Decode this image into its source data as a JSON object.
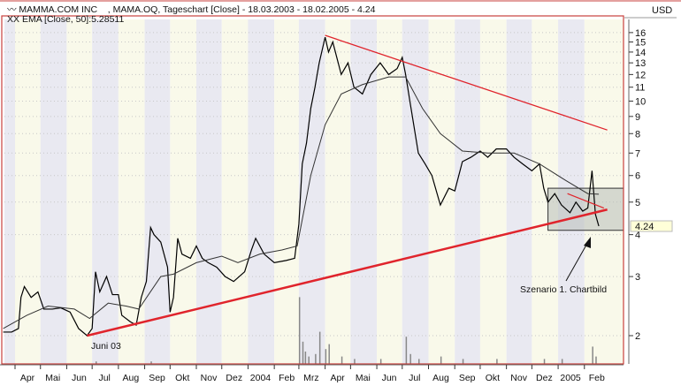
{
  "header": {
    "title_line": "MAMMA.COM INC    , MAMA.OQ, Tageschart [Close] - 18.03.2003 - 18.02.2005 - 4.24",
    "ema_line": "EMA [Close, 50]:5.28511"
  },
  "currency": "USD",
  "annotations": {
    "low_label": "Juni 03",
    "scenario_label": "Szenario 1. Chartbild"
  },
  "colors": {
    "price": "#000000",
    "ema": "#333333",
    "trendline": "#e0242c",
    "stripe_a": "#e9e9f1",
    "stripe_b": "#f9f9ea",
    "box": "#b8bdb8",
    "last_price_bg": "#ffffd8"
  },
  "chart_data": {
    "type": "line",
    "y_scale": "log",
    "ylim": [
      1.9,
      17
    ],
    "y_ticks": [
      2,
      3,
      4,
      5,
      6,
      7,
      8,
      9,
      10,
      11,
      12,
      13,
      14,
      15,
      16
    ],
    "last_price": "4.24",
    "x_ticks": [
      {
        "date": "2003-04-01",
        "label": "Apr"
      },
      {
        "date": "2003-05-01",
        "label": "Mai"
      },
      {
        "date": "2003-06-01",
        "label": "Jun"
      },
      {
        "date": "2003-07-01",
        "label": "Jul"
      },
      {
        "date": "2003-08-01",
        "label": "Aug"
      },
      {
        "date": "2003-09-01",
        "label": "Sep"
      },
      {
        "date": "2003-10-01",
        "label": "Okt"
      },
      {
        "date": "2003-11-01",
        "label": "Nov"
      },
      {
        "date": "2003-12-01",
        "label": "Dez"
      },
      {
        "date": "2004-01-01",
        "label": "2004"
      },
      {
        "date": "2004-02-01",
        "label": "Feb"
      },
      {
        "date": "2004-03-01",
        "label": "Mrz"
      },
      {
        "date": "2004-04-01",
        "label": "Apr"
      },
      {
        "date": "2004-05-01",
        "label": "Mai"
      },
      {
        "date": "2004-06-01",
        "label": "Jun"
      },
      {
        "date": "2004-07-01",
        "label": "Jul"
      },
      {
        "date": "2004-08-01",
        "label": "Aug"
      },
      {
        "date": "2004-09-01",
        "label": "Sep"
      },
      {
        "date": "2004-10-01",
        "label": "Okt"
      },
      {
        "date": "2004-11-01",
        "label": "Nov"
      },
      {
        "date": "2004-12-01",
        "label": "Dez"
      },
      {
        "date": "2005-01-01",
        "label": "2005"
      },
      {
        "date": "2005-02-01",
        "label": "Feb"
      }
    ],
    "series": [
      {
        "key": "price",
        "points": [
          [
            "2003-03-18",
            2.05
          ],
          [
            "2003-03-28",
            2.05
          ],
          [
            "2003-04-05",
            2.1
          ],
          [
            "2003-04-08",
            2.6
          ],
          [
            "2003-04-12",
            2.8
          ],
          [
            "2003-04-20",
            2.6
          ],
          [
            "2003-04-28",
            2.7
          ],
          [
            "2003-05-05",
            2.4
          ],
          [
            "2003-05-15",
            2.4
          ],
          [
            "2003-05-25",
            2.42
          ],
          [
            "2003-06-05",
            2.35
          ],
          [
            "2003-06-15",
            2.1
          ],
          [
            "2003-06-25",
            2.0
          ],
          [
            "2003-07-01",
            2.1
          ],
          [
            "2003-07-05",
            3.1
          ],
          [
            "2003-07-10",
            2.7
          ],
          [
            "2003-07-18",
            3.0
          ],
          [
            "2003-07-25",
            2.65
          ],
          [
            "2003-08-01",
            2.65
          ],
          [
            "2003-08-05",
            2.3
          ],
          [
            "2003-08-15",
            2.2
          ],
          [
            "2003-08-22",
            2.15
          ],
          [
            "2003-08-28",
            2.6
          ],
          [
            "2003-09-03",
            2.9
          ],
          [
            "2003-09-08",
            4.2
          ],
          [
            "2003-09-12",
            4.0
          ],
          [
            "2003-09-20",
            3.8
          ],
          [
            "2003-09-28",
            3.2
          ],
          [
            "2003-10-01",
            2.35
          ],
          [
            "2003-10-05",
            2.6
          ],
          [
            "2003-10-10",
            3.9
          ],
          [
            "2003-10-15",
            3.5
          ],
          [
            "2003-10-25",
            3.4
          ],
          [
            "2003-11-01",
            3.7
          ],
          [
            "2003-11-08",
            3.4
          ],
          [
            "2003-11-15",
            3.3
          ],
          [
            "2003-11-25",
            3.2
          ],
          [
            "2003-12-05",
            3.0
          ],
          [
            "2003-12-15",
            2.9
          ],
          [
            "2003-12-28",
            3.1
          ],
          [
            "2004-01-05",
            3.6
          ],
          [
            "2004-01-10",
            3.9
          ],
          [
            "2004-01-20",
            3.5
          ],
          [
            "2004-02-01",
            3.3
          ],
          [
            "2004-02-15",
            3.35
          ],
          [
            "2004-02-25",
            3.4
          ],
          [
            "2004-03-01",
            4.3
          ],
          [
            "2004-03-05",
            6.5
          ],
          [
            "2004-03-10",
            7.5
          ],
          [
            "2004-03-15",
            9.5
          ],
          [
            "2004-03-20",
            11
          ],
          [
            "2004-03-25",
            13
          ],
          [
            "2004-04-01",
            15.5
          ],
          [
            "2004-04-05",
            14
          ],
          [
            "2004-04-10",
            15
          ],
          [
            "2004-04-20",
            12
          ],
          [
            "2004-04-28",
            13
          ],
          [
            "2004-05-05",
            11
          ],
          [
            "2004-05-15",
            10.5
          ],
          [
            "2004-05-25",
            12
          ],
          [
            "2004-06-05",
            13
          ],
          [
            "2004-06-15",
            12
          ],
          [
            "2004-06-25",
            12.5
          ],
          [
            "2004-07-01",
            13.5
          ],
          [
            "2004-07-05",
            12
          ],
          [
            "2004-07-10",
            10
          ],
          [
            "2004-07-20",
            7
          ],
          [
            "2004-07-28",
            6.5
          ],
          [
            "2004-08-05",
            6
          ],
          [
            "2004-08-15",
            4.9
          ],
          [
            "2004-08-25",
            5.5
          ],
          [
            "2004-09-01",
            5.4
          ],
          [
            "2004-09-10",
            6.6
          ],
          [
            "2004-09-20",
            6.8
          ],
          [
            "2004-10-01",
            7.1
          ],
          [
            "2004-10-10",
            6.8
          ],
          [
            "2004-10-20",
            7.2
          ],
          [
            "2004-11-01",
            7.2
          ],
          [
            "2004-11-10",
            6.8
          ],
          [
            "2004-11-20",
            6.5
          ],
          [
            "2004-12-01",
            6.2
          ],
          [
            "2004-12-10",
            6.5
          ],
          [
            "2004-12-15",
            5.5
          ],
          [
            "2004-12-20",
            5.0
          ],
          [
            "2004-12-28",
            5.3
          ],
          [
            "2005-01-05",
            4.9
          ],
          [
            "2005-01-15",
            4.65
          ],
          [
            "2005-01-22",
            5.0
          ],
          [
            "2005-01-30",
            4.7
          ],
          [
            "2005-02-05",
            4.8
          ],
          [
            "2005-02-10",
            6.2
          ],
          [
            "2005-02-14",
            4.6
          ],
          [
            "2005-02-18",
            4.24
          ]
        ]
      },
      {
        "key": "ema",
        "points": [
          [
            "2003-03-18",
            2.1
          ],
          [
            "2003-04-15",
            2.3
          ],
          [
            "2003-05-10",
            2.45
          ],
          [
            "2003-06-10",
            2.4
          ],
          [
            "2003-06-28",
            2.25
          ],
          [
            "2003-07-20",
            2.5
          ],
          [
            "2003-08-10",
            2.45
          ],
          [
            "2003-08-25",
            2.4
          ],
          [
            "2003-09-20",
            3.0
          ],
          [
            "2003-10-05",
            3.05
          ],
          [
            "2003-11-01",
            3.3
          ],
          [
            "2003-12-01",
            3.45
          ],
          [
            "2003-12-20",
            3.3
          ],
          [
            "2004-01-15",
            3.5
          ],
          [
            "2004-02-10",
            3.6
          ],
          [
            "2004-02-28",
            3.7
          ],
          [
            "2004-03-15",
            6
          ],
          [
            "2004-04-01",
            8.5
          ],
          [
            "2004-04-20",
            10.5
          ],
          [
            "2004-05-15",
            11.2
          ],
          [
            "2004-06-15",
            11.8
          ],
          [
            "2004-07-05",
            11.8
          ],
          [
            "2004-07-25",
            9.5
          ],
          [
            "2004-08-15",
            8
          ],
          [
            "2004-09-10",
            7.1
          ],
          [
            "2004-10-10",
            7
          ],
          [
            "2004-11-10",
            7
          ],
          [
            "2004-12-10",
            6.5
          ],
          [
            "2005-01-10",
            5.8
          ],
          [
            "2005-02-05",
            5.3
          ],
          [
            "2005-02-18",
            5.28
          ]
        ]
      }
    ],
    "trendlines": [
      {
        "from": [
          "2003-06-25",
          2.0
        ],
        "to": [
          "2005-02-28",
          4.75
        ]
      },
      {
        "from": [
          "2004-04-01",
          15.7
        ],
        "to": [
          "2005-02-28",
          8.2
        ]
      },
      {
        "from": [
          "2005-01-12",
          5.3
        ],
        "to": [
          "2005-02-24",
          4.8
        ]
      }
    ],
    "zone": {
      "from": "2004-12-20",
      "to": "2005-02-28",
      "low": 4.12,
      "high": 5.5
    },
    "volume": [
      [
        "2003-07-05",
        1
      ],
      [
        "2003-09-08",
        1
      ],
      [
        "2004-03-01",
        27
      ],
      [
        "2004-03-05",
        9
      ],
      [
        "2004-03-08",
        5
      ],
      [
        "2004-03-12",
        3
      ],
      [
        "2004-03-20",
        4
      ],
      [
        "2004-03-25",
        13
      ],
      [
        "2004-04-01",
        6
      ],
      [
        "2004-04-05",
        8
      ],
      [
        "2004-04-20",
        3
      ],
      [
        "2004-05-05",
        2
      ],
      [
        "2004-06-05",
        2
      ],
      [
        "2004-07-05",
        11
      ],
      [
        "2004-07-10",
        4
      ],
      [
        "2004-07-20",
        2
      ],
      [
        "2004-08-15",
        3
      ],
      [
        "2004-09-10",
        2
      ],
      [
        "2004-10-20",
        2
      ],
      [
        "2004-12-15",
        2
      ],
      [
        "2005-01-05",
        2
      ],
      [
        "2005-02-10",
        7
      ],
      [
        "2005-02-14",
        3
      ]
    ]
  }
}
